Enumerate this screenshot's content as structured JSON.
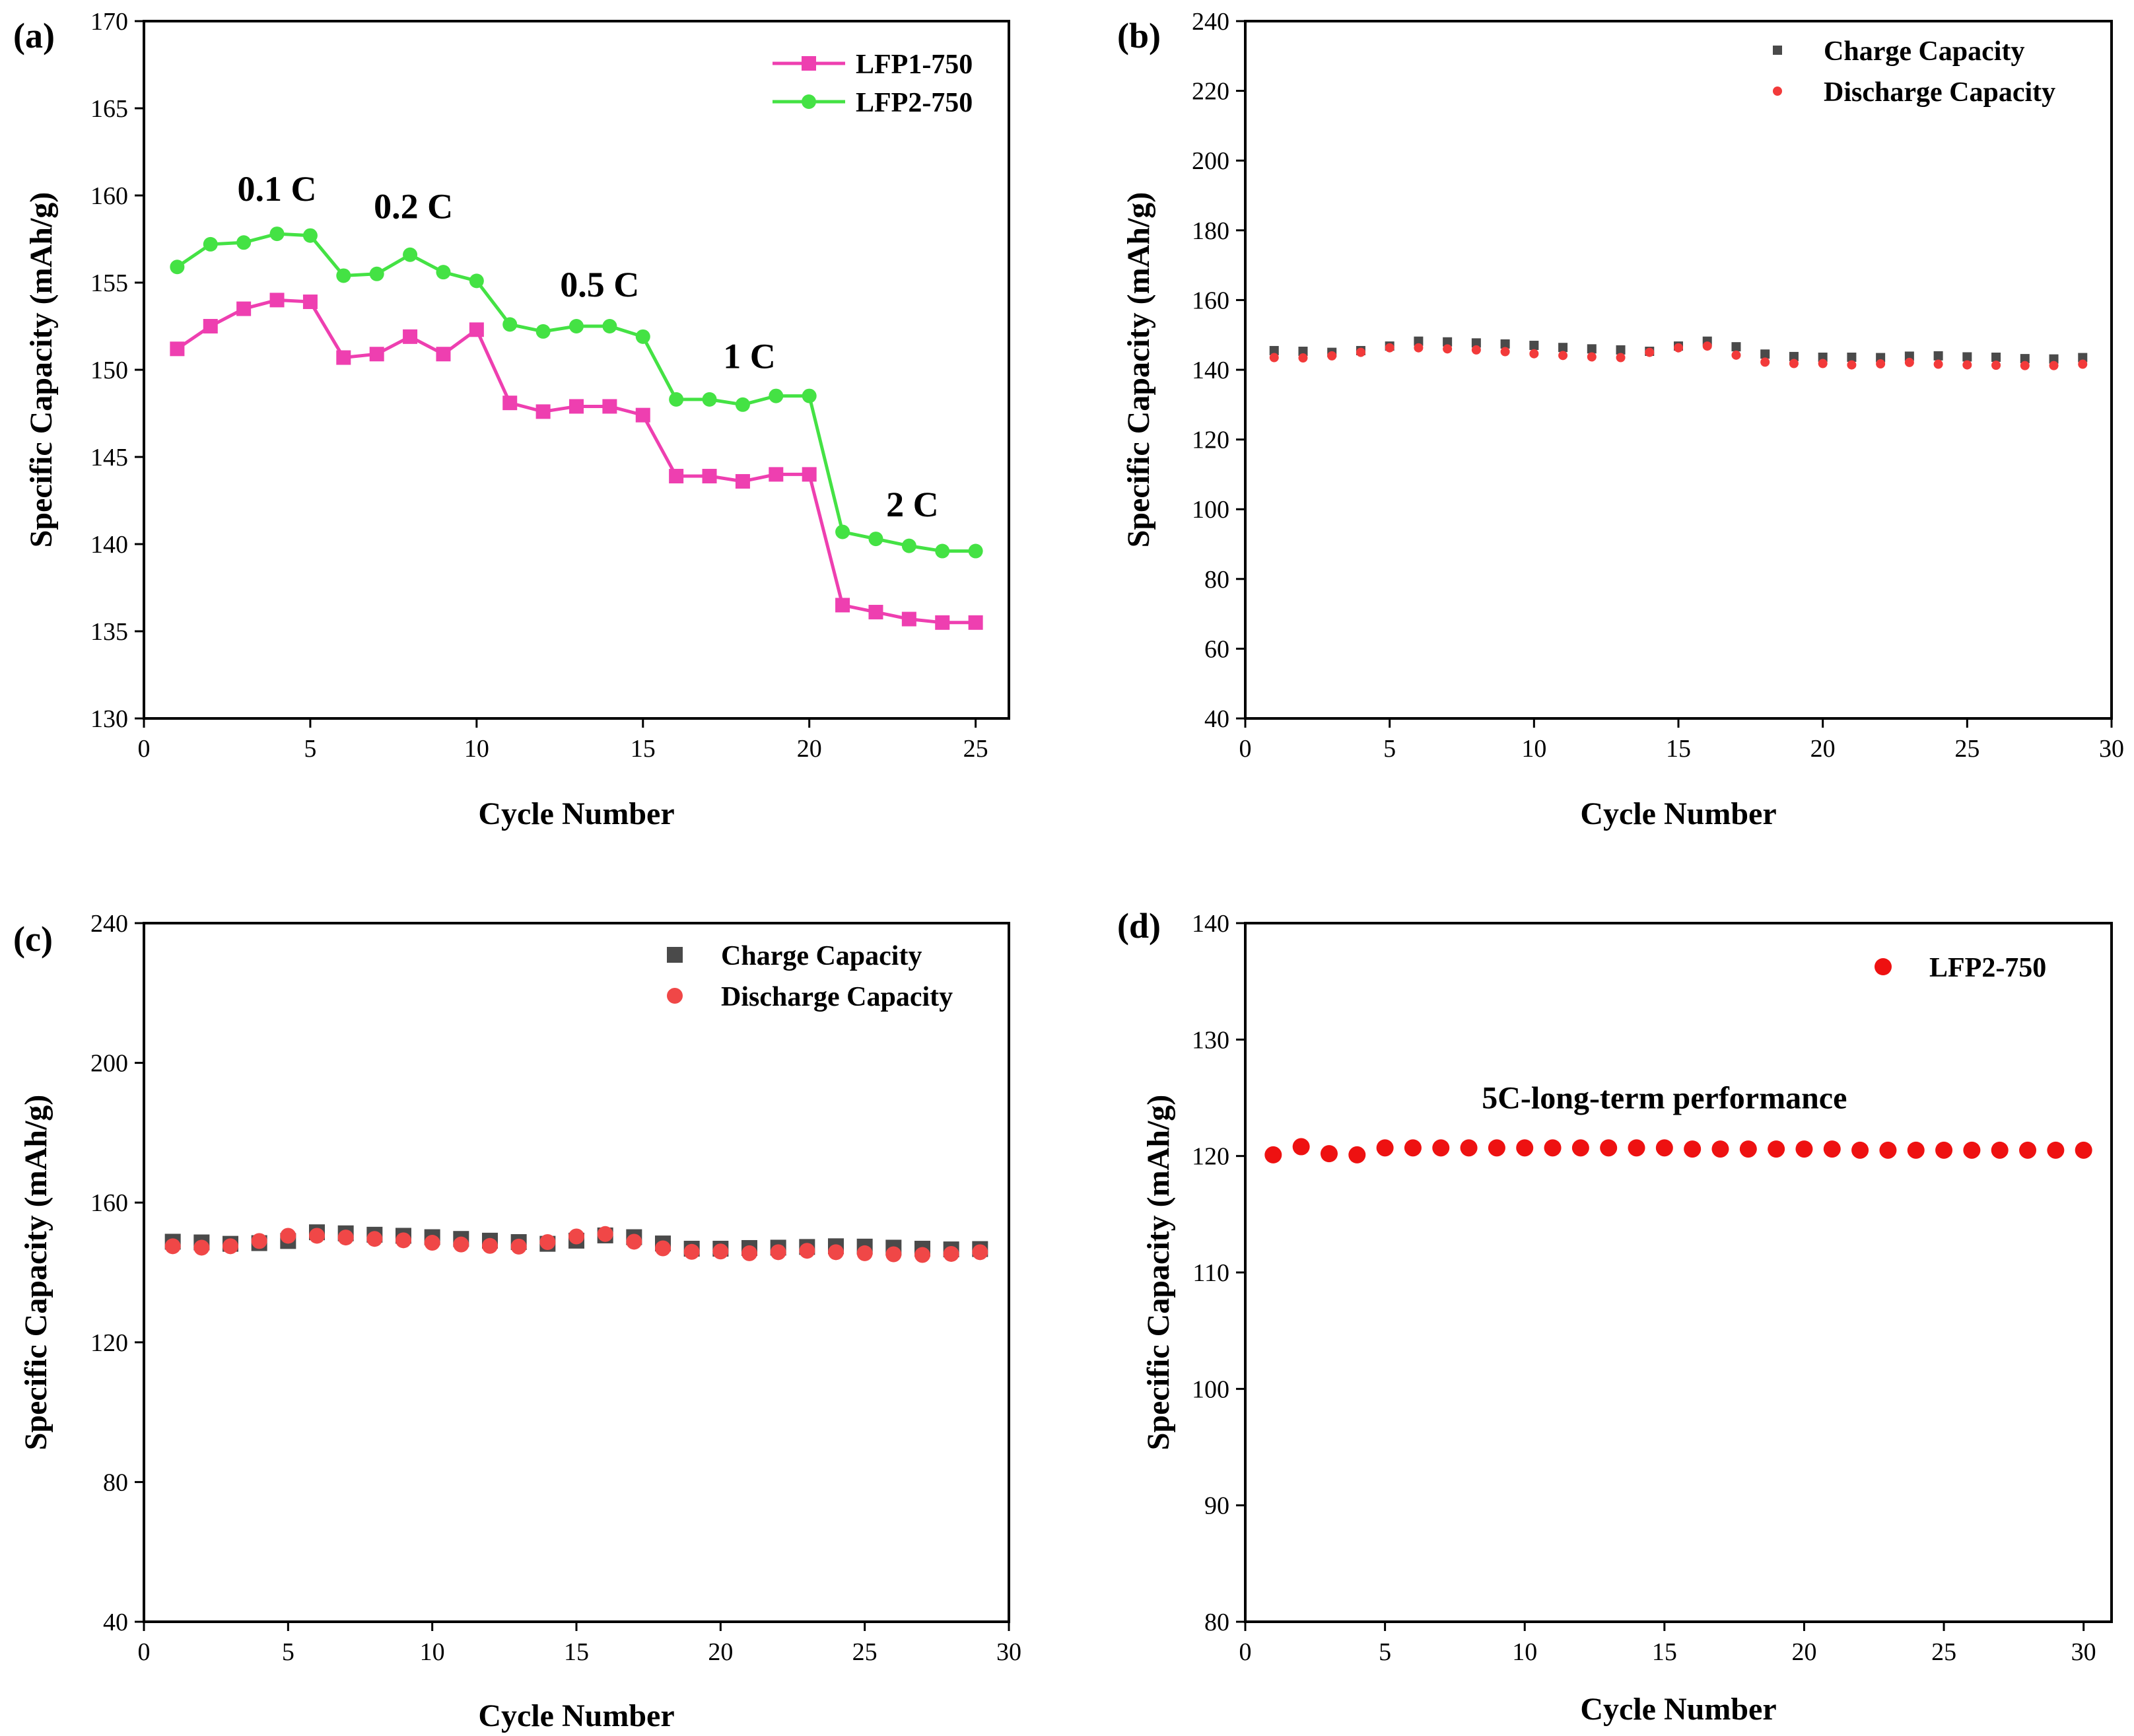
{
  "chart_data": [
    {
      "panel": "(a)",
      "type": "line",
      "xlabel": "Cycle Number",
      "ylabel": "Specific Capacity (mAh/g)",
      "xlim": [
        0,
        26
      ],
      "ylim": [
        130,
        170
      ],
      "xticks": [
        0,
        5,
        10,
        15,
        20,
        25
      ],
      "yticks": [
        130,
        135,
        140,
        145,
        150,
        155,
        160,
        165,
        170
      ],
      "legend_position": "top-right",
      "x": [
        1,
        2,
        3,
        4,
        5,
        6,
        7,
        8,
        9,
        10,
        11,
        12,
        13,
        14,
        15,
        16,
        17,
        18,
        19,
        20,
        21,
        22,
        23,
        24,
        25
      ],
      "series": [
        {
          "name": "LFP1-750",
          "color": "#ee3fb0",
          "marker": "square",
          "values": [
            151.2,
            152.5,
            153.5,
            154.0,
            153.9,
            150.7,
            150.9,
            151.9,
            150.9,
            152.3,
            148.1,
            147.6,
            147.9,
            147.9,
            147.4,
            143.9,
            143.9,
            143.6,
            144.0,
            144.0,
            136.5,
            136.1,
            135.7,
            135.5,
            135.5
          ]
        },
        {
          "name": "LFP2-750",
          "color": "#44e244",
          "marker": "circle",
          "values": [
            155.9,
            157.2,
            157.3,
            157.8,
            157.7,
            155.4,
            155.5,
            156.6,
            155.6,
            155.1,
            152.6,
            152.2,
            152.5,
            152.5,
            151.9,
            148.3,
            148.3,
            148.0,
            148.5,
            148.5,
            140.7,
            140.3,
            139.9,
            139.6,
            139.6
          ]
        }
      ],
      "annotations": [
        {
          "text": "0.1 C",
          "x": 4.0,
          "y": 159.7
        },
        {
          "text": "0.2 C",
          "x": 8.1,
          "y": 158.7
        },
        {
          "text": "0.5 C",
          "x": 13.7,
          "y": 154.2
        },
        {
          "text": "1 C",
          "x": 18.2,
          "y": 150.1
        },
        {
          "text": "2 C",
          "x": 23.1,
          "y": 141.6
        }
      ]
    },
    {
      "panel": "(b)",
      "type": "scatter",
      "xlabel": "Cycle Number",
      "ylabel": "Specific Capacity (mAh/g)",
      "xlim": [
        0,
        30
      ],
      "ylim": [
        40,
        240
      ],
      "xticks": [
        0,
        5,
        10,
        15,
        20,
        25,
        30
      ],
      "yticks": [
        40,
        60,
        80,
        100,
        120,
        140,
        160,
        180,
        200,
        220,
        240
      ],
      "legend_position": "top-right",
      "x": [
        1,
        2,
        3,
        4,
        5,
        6,
        7,
        8,
        9,
        10,
        11,
        12,
        13,
        14,
        15,
        16,
        17,
        18,
        19,
        20,
        21,
        22,
        23,
        24,
        25,
        26,
        27,
        28,
        29
      ],
      "series": [
        {
          "name": "Charge Capacity",
          "color": "#4a4a4a",
          "marker": "square",
          "values": [
            145.5,
            145.3,
            145.0,
            145.5,
            146.8,
            148.2,
            148.0,
            147.7,
            147.4,
            147.0,
            146.4,
            146.0,
            145.7,
            145.3,
            146.8,
            148.2,
            146.6,
            144.5,
            143.8,
            143.6,
            143.6,
            143.5,
            143.9,
            144.0,
            143.7,
            143.6,
            143.2,
            143.1,
            143.5
          ]
        },
        {
          "name": "Discharge Capacity",
          "color": "#f23a3a",
          "marker": "circle",
          "values": [
            143.5,
            143.4,
            144.0,
            145.0,
            146.3,
            146.3,
            146.0,
            145.7,
            145.2,
            144.6,
            144.1,
            143.7,
            143.5,
            145.0,
            146.3,
            146.8,
            144.2,
            142.2,
            141.8,
            141.8,
            141.4,
            141.7,
            142.1,
            141.6,
            141.4,
            141.3,
            141.2,
            141.2,
            141.6
          ]
        }
      ]
    },
    {
      "panel": "(c)",
      "type": "scatter",
      "xlabel": "Cycle Number",
      "ylabel": "Specific Capacity (mAh/g)",
      "xlim": [
        0,
        30
      ],
      "ylim": [
        40,
        240
      ],
      "xticks": [
        0,
        5,
        10,
        15,
        20,
        25,
        30
      ],
      "yticks": [
        40,
        80,
        120,
        160,
        200,
        240
      ],
      "legend_position": "top-right",
      "x": [
        1,
        2,
        3,
        4,
        5,
        6,
        7,
        8,
        9,
        10,
        11,
        12,
        13,
        14,
        15,
        16,
        17,
        18,
        19,
        20,
        21,
        22,
        23,
        24,
        25,
        26,
        27,
        28,
        29
      ],
      "series": [
        {
          "name": "Charge Capacity",
          "color": "#4a4a4a",
          "marker": "square",
          "values": [
            148.8,
            148.6,
            148.2,
            148.4,
            149.0,
            151.5,
            151.2,
            150.8,
            150.5,
            150.1,
            149.6,
            149.1,
            148.7,
            148.2,
            149.1,
            150.6,
            150.1,
            148.3,
            146.8,
            146.8,
            147.0,
            147.1,
            147.3,
            147.5,
            147.4,
            147.1,
            146.8,
            146.6,
            146.7
          ]
        },
        {
          "name": "Discharge Capacity",
          "color": "#f04747",
          "marker": "circle",
          "values": [
            147.5,
            147.1,
            147.5,
            149.0,
            150.5,
            150.5,
            150.0,
            149.6,
            149.2,
            148.5,
            148.0,
            147.6,
            147.4,
            148.7,
            150.3,
            151.0,
            148.8,
            146.9,
            145.9,
            146.0,
            145.5,
            145.8,
            146.2,
            145.8,
            145.5,
            145.2,
            145.0,
            145.3,
            145.8
          ]
        }
      ]
    },
    {
      "panel": "(d)",
      "type": "scatter",
      "xlabel": "Cycle Number",
      "ylabel": "Specific Capacity (mAh/g)",
      "xlim": [
        0,
        31
      ],
      "ylim": [
        80,
        140
      ],
      "xticks": [
        0,
        5,
        10,
        15,
        20,
        25,
        30
      ],
      "yticks": [
        80,
        90,
        100,
        110,
        120,
        130,
        140
      ],
      "legend_position": "top-right",
      "x": [
        1,
        2,
        3,
        4,
        5,
        6,
        7,
        8,
        9,
        10,
        11,
        12,
        13,
        14,
        15,
        16,
        17,
        18,
        19,
        20,
        21,
        22,
        23,
        24,
        25,
        26,
        27,
        28,
        29,
        30
      ],
      "series": [
        {
          "name": "LFP2-750",
          "color": "#ee1111",
          "marker": "circle",
          "values": [
            120.1,
            120.8,
            120.2,
            120.1,
            120.7,
            120.7,
            120.7,
            120.7,
            120.7,
            120.7,
            120.7,
            120.7,
            120.7,
            120.7,
            120.7,
            120.6,
            120.6,
            120.6,
            120.6,
            120.6,
            120.6,
            120.5,
            120.5,
            120.5,
            120.5,
            120.5,
            120.5,
            120.5,
            120.5,
            120.5
          ]
        }
      ],
      "annotations": [
        {
          "text": "5C-long-term performance",
          "x": 15.0,
          "y": 124.1
        }
      ]
    }
  ]
}
